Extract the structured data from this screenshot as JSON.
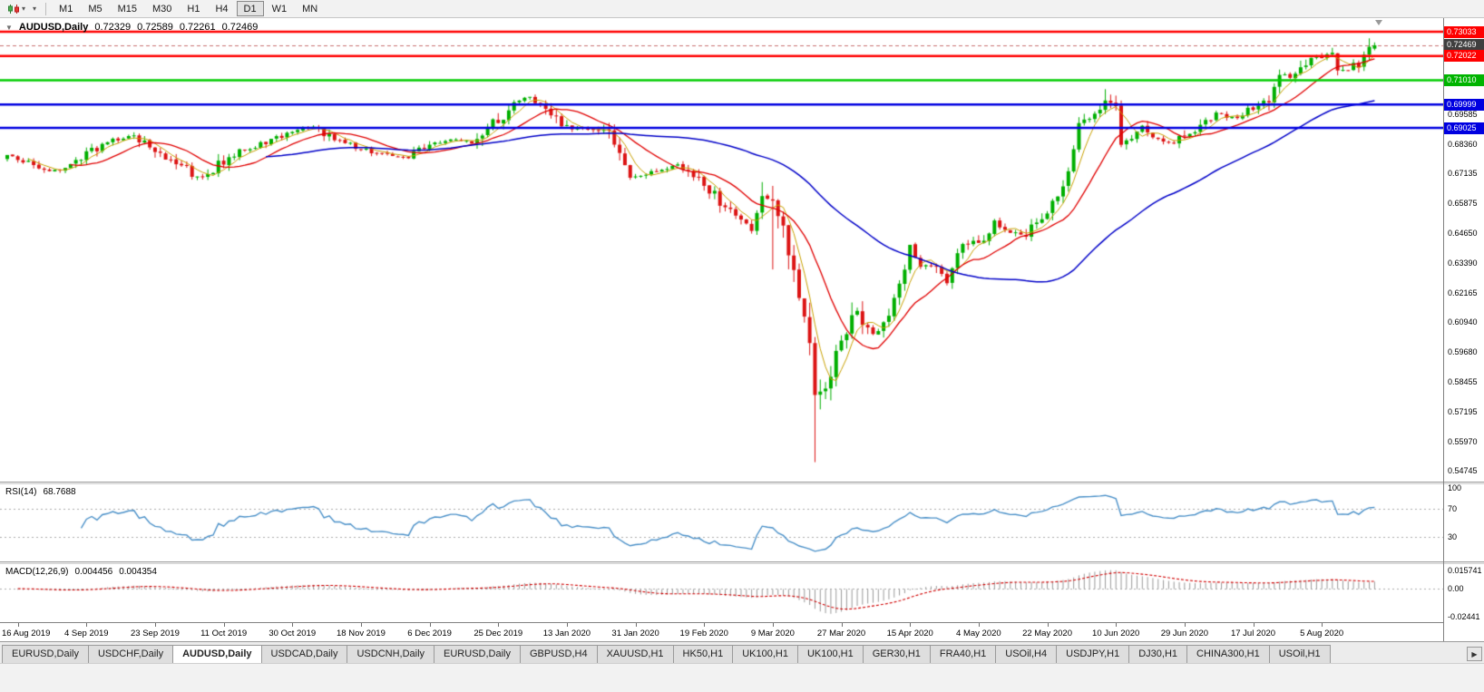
{
  "icons": {
    "caret_down": "▾",
    "collapse_triangle": "▼",
    "tab_scroll_right": "▶"
  },
  "toolbar": {
    "timeframes": [
      "M1",
      "M5",
      "M15",
      "M30",
      "H1",
      "H4",
      "D1",
      "W1",
      "MN"
    ],
    "active_timeframe": "D1"
  },
  "header": {
    "collapse_icon": "▼",
    "symbol": "AUDUSD,Daily",
    "open": "0.72329",
    "high": "0.72589",
    "low": "0.72261",
    "close": "0.72469"
  },
  "price_axis": {
    "plain_labels": [
      "0.69585",
      "0.68360",
      "0.67135",
      "0.65875",
      "0.64650",
      "0.63390",
      "0.62165",
      "0.60940",
      "0.59680",
      "0.58455",
      "0.57195",
      "0.55970",
      "0.54745"
    ],
    "tags": [
      {
        "text": "0.73033",
        "value": 0.73033,
        "bg": "#FF0000"
      },
      {
        "text": "0.72469",
        "value": 0.72469,
        "bg": "#3F3F3F"
      },
      {
        "text": "0.72022",
        "value": 0.72022,
        "bg": "#FF0000"
      },
      {
        "text": "0.71010",
        "value": 0.7101,
        "bg": "#00B400"
      },
      {
        "text": "0.69999",
        "value": 0.69999,
        "bg": "#0000E0"
      },
      {
        "text": "0.69025",
        "value": 0.69025,
        "bg": "#0000E0"
      }
    ]
  },
  "date_axis": {
    "labels": [
      "16 Aug 2019",
      "4 Sep 2019",
      "23 Sep 2019",
      "11 Oct 2019",
      "30 Oct 2019",
      "18 Nov 2019",
      "6 Dec 2019",
      "25 Dec 2019",
      "13 Jan 2020",
      "31 Jan 2020",
      "19 Feb 2020",
      "9 Mar 2020",
      "27 Mar 2020",
      "15 Apr 2020",
      "4 May 2020",
      "22 May 2020",
      "10 Jun 2020",
      "29 Jun 2020",
      "17 Jul 2020",
      "5 Aug 2020"
    ],
    "tick_indices": [
      2,
      15,
      28,
      41,
      54,
      67,
      80,
      93,
      106,
      119,
      132,
      145,
      158,
      171,
      184,
      197,
      210,
      223,
      236,
      249
    ]
  },
  "rsi_pane": {
    "title": "RSI(14)",
    "value": "68.7688",
    "period": 14,
    "axis_labels": [
      {
        "text": "100",
        "value": 100
      },
      {
        "text": "70",
        "value": 70
      },
      {
        "text": "30",
        "value": 30
      }
    ],
    "dashed_levels": [
      70,
      30
    ]
  },
  "macd_pane": {
    "title": "MACD(12,26,9)",
    "main_value": "0.004456",
    "signal_value": "0.004354",
    "axis_labels": [
      {
        "text": "0.015741",
        "value": 0.015741
      },
      {
        "text": "0.00",
        "value": 0
      },
      {
        "text": "-0.02441",
        "value": -0.02441
      }
    ],
    "axis_max": 0.015741,
    "axis_min": -0.02441
  },
  "tabs": {
    "items": [
      "EURUSD,Daily",
      "USDCHF,Daily",
      "AUDUSD,Daily",
      "USDCAD,Daily",
      "USDCNH,Daily",
      "EURUSD,Daily",
      "GBPUSD,H4",
      "XAUUSD,H1",
      "HK50,H1",
      "UK100,H1",
      "UK100,H1",
      "GER30,H1",
      "FRA40,H1",
      "USOil,H4",
      "USDJPY,H1",
      "DJ30,H1",
      "CHINA300,H1",
      "USOil,H1"
    ],
    "active_index": 2
  },
  "chart_data": {
    "type": "candlestick",
    "symbol": "AUDUSD",
    "timeframe": "Daily",
    "title": "AUDUSD,Daily",
    "n_candles": 260,
    "current_price": 0.72469,
    "last_candle": {
      "open": 0.72329,
      "high": 0.72589,
      "low": 0.72261,
      "close": 0.72469
    },
    "scale": {
      "top": 0.736,
      "bottom": 0.5429
    },
    "x_range": [
      "16 Aug 2019",
      "Aug 2020"
    ],
    "close_anchors": [
      [
        0,
        0.6785
      ],
      [
        4,
        0.6758
      ],
      [
        8,
        0.6722
      ],
      [
        12,
        0.6742
      ],
      [
        15,
        0.6788
      ],
      [
        19,
        0.6845
      ],
      [
        24,
        0.6872
      ],
      [
        28,
        0.68
      ],
      [
        33,
        0.675
      ],
      [
        36,
        0.669
      ],
      [
        38,
        0.6702
      ],
      [
        41,
        0.6768
      ],
      [
        46,
        0.6822
      ],
      [
        50,
        0.685
      ],
      [
        54,
        0.6892
      ],
      [
        58,
        0.6902
      ],
      [
        62,
        0.6858
      ],
      [
        67,
        0.6812
      ],
      [
        72,
        0.6788
      ],
      [
        76,
        0.6782
      ],
      [
        80,
        0.6838
      ],
      [
        84,
        0.6852
      ],
      [
        88,
        0.6845
      ],
      [
        93,
        0.6938
      ],
      [
        97,
        0.7012
      ],
      [
        99,
        0.703
      ],
      [
        102,
        0.6985
      ],
      [
        106,
        0.6905
      ],
      [
        110,
        0.6898
      ],
      [
        114,
        0.6872
      ],
      [
        117,
        0.6742
      ],
      [
        119,
        0.6692
      ],
      [
        123,
        0.6725
      ],
      [
        127,
        0.6748
      ],
      [
        130,
        0.671
      ],
      [
        132,
        0.6662
      ],
      [
        135,
        0.66
      ],
      [
        138,
        0.6532
      ],
      [
        141,
        0.6495
      ],
      [
        143,
        0.661
      ],
      [
        145,
        0.6582
      ],
      [
        147,
        0.6498
      ],
      [
        149,
        0.6308
      ],
      [
        151,
        0.612
      ],
      [
        152,
        0.599
      ],
      [
        153,
        0.5772
      ],
      [
        155,
        0.5835
      ],
      [
        157,
        0.5965
      ],
      [
        159,
        0.6068
      ],
      [
        161,
        0.6135
      ],
      [
        164,
        0.6042
      ],
      [
        166,
        0.6078
      ],
      [
        169,
        0.6255
      ],
      [
        171,
        0.6402
      ],
      [
        173,
        0.633
      ],
      [
        176,
        0.6335
      ],
      [
        178,
        0.6262
      ],
      [
        181,
        0.6415
      ],
      [
        184,
        0.6428
      ],
      [
        187,
        0.6508
      ],
      [
        190,
        0.6462
      ],
      [
        193,
        0.6452
      ],
      [
        195,
        0.6522
      ],
      [
        197,
        0.6558
      ],
      [
        200,
        0.6655
      ],
      [
        203,
        0.6905
      ],
      [
        206,
        0.6955
      ],
      [
        208,
        0.7005
      ],
      [
        210,
        0.6995
      ],
      [
        211,
        0.6852
      ],
      [
        213,
        0.6875
      ],
      [
        215,
        0.6915
      ],
      [
        218,
        0.6855
      ],
      [
        220,
        0.6838
      ],
      [
        223,
        0.6872
      ],
      [
        225,
        0.6898
      ],
      [
        227,
        0.6922
      ],
      [
        229,
        0.6962
      ],
      [
        231,
        0.6952
      ],
      [
        233,
        0.6942
      ],
      [
        235,
        0.6972
      ],
      [
        237,
        0.6992
      ],
      [
        239,
        0.7012
      ],
      [
        241,
        0.7132
      ],
      [
        243,
        0.7108
      ],
      [
        245,
        0.7152
      ],
      [
        247,
        0.7188
      ],
      [
        249,
        0.7198
      ],
      [
        251,
        0.7228
      ],
      [
        252,
        0.7158
      ],
      [
        254,
        0.7148
      ],
      [
        256,
        0.7172
      ],
      [
        258,
        0.7238
      ],
      [
        259,
        0.72469
      ]
    ],
    "wick_overrides": {
      "99": {
        "high": 0.7032
      },
      "145": {
        "low": 0.6313
      },
      "153": {
        "low": 0.551
      },
      "208": {
        "high": 0.7064
      },
      "258": {
        "high": 0.7276
      }
    },
    "vol_boost": {
      "from": 143,
      "to": 162,
      "factor": 1.9
    },
    "horizontal_lines": [
      {
        "price": 0.73033,
        "color": "#FF0000",
        "width": 2.4
      },
      {
        "price": 0.72022,
        "color": "#FF0000",
        "width": 2.4
      },
      {
        "price": 0.7101,
        "color": "#00CC00",
        "width": 2.6
      },
      {
        "price": 0.69999,
        "color": "#0000E0",
        "width": 2.6
      },
      {
        "price": 0.69025,
        "color": "#0000E0",
        "width": 2.6
      }
    ],
    "moving_averages": [
      {
        "period": 5,
        "color": "#C8A000",
        "width": 1
      },
      {
        "period": 13,
        "color": "#E00000",
        "width": 1.3
      },
      {
        "period": 50,
        "color": "#0000C8",
        "width": 1.5
      }
    ],
    "indicators": {
      "rsi": {
        "period": 14,
        "last": 68.7688
      },
      "macd": {
        "fast": 12,
        "slow": 26,
        "signal": 9,
        "main_last": 0.004456,
        "signal_last": 0.004354
      }
    },
    "colors": {
      "up": "#00AF00",
      "down": "#DC1414",
      "rsi": "#4A90C8",
      "macd_hist": "#9A9A9A",
      "macd_signal": "#D00000",
      "bid_line": "#C87070",
      "level_dotted": "#ABABAB"
    }
  }
}
